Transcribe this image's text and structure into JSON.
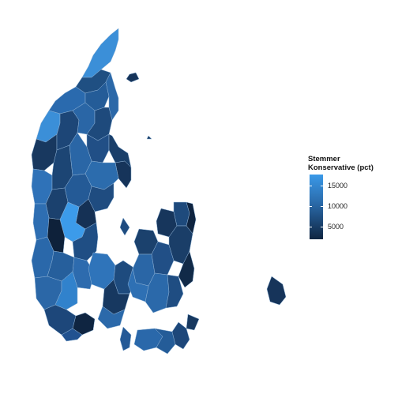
{
  "legend": {
    "title_line1": "Stemmer",
    "title_line2": "Konservative (pct)",
    "ticks": [
      "15000",
      "10000",
      "5000"
    ],
    "scale_high_color": "#3a99e8",
    "scale_low_color": "#0f2540"
  },
  "map": {
    "region": "Denmark municipalities",
    "fill_variable": "Stemmer Konservative (pct)"
  }
}
